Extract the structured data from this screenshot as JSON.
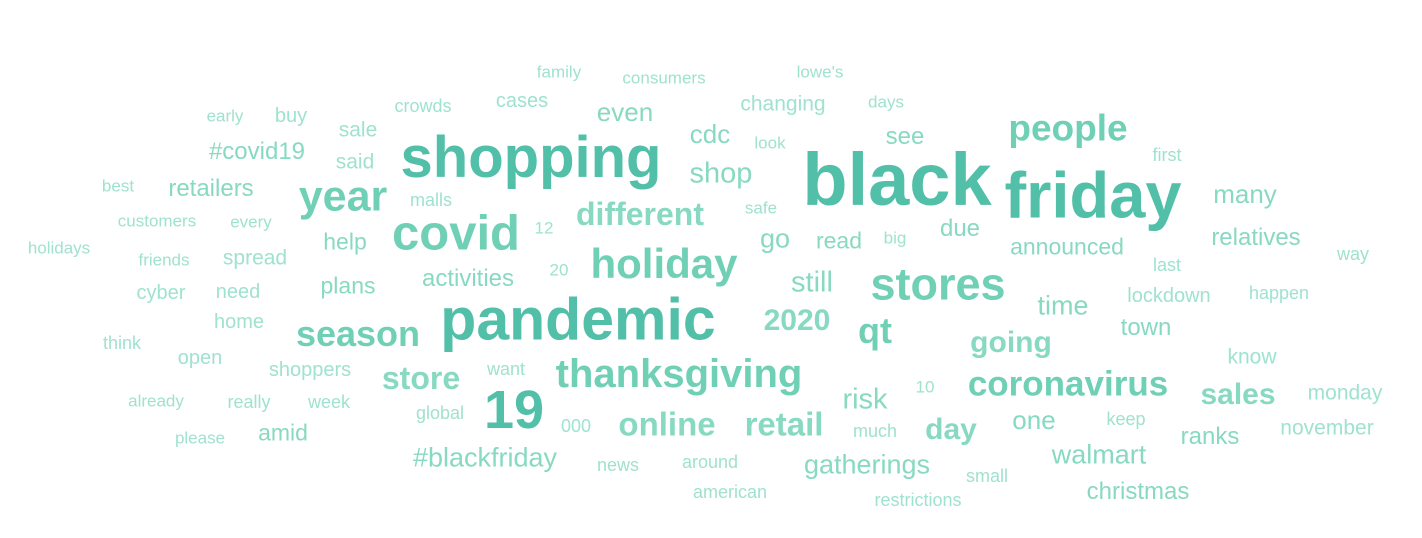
{
  "wordcloud": {
    "colors": {
      "w1": "#9fe2cf",
      "w2": "#88d9c1",
      "w3": "#6fd0b5",
      "w4": "#52bfa9"
    },
    "words": [
      {
        "text": "black",
        "weight": 100
      },
      {
        "text": "friday",
        "weight": 88
      },
      {
        "text": "pandemic",
        "weight": 80
      },
      {
        "text": "shopping",
        "weight": 78
      },
      {
        "text": "19",
        "weight": 72
      },
      {
        "text": "covid",
        "weight": 66
      },
      {
        "text": "stores",
        "weight": 60
      },
      {
        "text": "year",
        "weight": 58
      },
      {
        "text": "holiday",
        "weight": 56
      },
      {
        "text": "thanksgiving",
        "weight": 54
      },
      {
        "text": "people",
        "weight": 50
      },
      {
        "text": "season",
        "weight": 48
      },
      {
        "text": "qt",
        "weight": 48
      },
      {
        "text": "coronavirus",
        "weight": 46
      },
      {
        "text": "online",
        "weight": 44
      },
      {
        "text": "retail",
        "weight": 44
      },
      {
        "text": "store",
        "weight": 42
      },
      {
        "text": "different",
        "weight": 42
      },
      {
        "text": "2020",
        "weight": 40
      },
      {
        "text": "going",
        "weight": 40
      },
      {
        "text": "sales",
        "weight": 40
      },
      {
        "text": "day",
        "weight": 40
      },
      {
        "text": "shop",
        "weight": 38
      },
      {
        "text": "still",
        "weight": 38
      },
      {
        "text": "risk",
        "weight": 38
      },
      {
        "text": "#blackfriday",
        "weight": 36
      },
      {
        "text": "gatherings",
        "weight": 36
      },
      {
        "text": "walmart",
        "weight": 36
      },
      {
        "text": "go",
        "weight": 36
      },
      {
        "text": "time",
        "weight": 36
      },
      {
        "text": "many",
        "weight": 34
      },
      {
        "text": "cdc",
        "weight": 34
      },
      {
        "text": "even",
        "weight": 34
      },
      {
        "text": "one",
        "weight": 34
      },
      {
        "text": "see",
        "weight": 32
      },
      {
        "text": "activities",
        "weight": 32
      },
      {
        "text": "relatives",
        "weight": 32
      },
      {
        "text": "christmas",
        "weight": 32
      },
      {
        "text": "retailers",
        "weight": 32
      },
      {
        "text": "#covid19",
        "weight": 32
      },
      {
        "text": "town",
        "weight": 32
      },
      {
        "text": "ranks",
        "weight": 32
      },
      {
        "text": "due",
        "weight": 32
      },
      {
        "text": "amid",
        "weight": 30
      },
      {
        "text": "plans",
        "weight": 30
      },
      {
        "text": "announced",
        "weight": 30
      },
      {
        "text": "help",
        "weight": 30
      },
      {
        "text": "read",
        "weight": 30
      },
      {
        "text": "said",
        "weight": 28
      },
      {
        "text": "spread",
        "weight": 28
      },
      {
        "text": "know",
        "weight": 28
      },
      {
        "text": "changing",
        "weight": 28
      },
      {
        "text": "monday",
        "weight": 28
      },
      {
        "text": "november",
        "weight": 28
      },
      {
        "text": "sale",
        "weight": 28
      },
      {
        "text": "cases",
        "weight": 26
      },
      {
        "text": "buy",
        "weight": 26
      },
      {
        "text": "cyber",
        "weight": 26
      },
      {
        "text": "need",
        "weight": 26
      },
      {
        "text": "home",
        "weight": 26
      },
      {
        "text": "open",
        "weight": 26
      },
      {
        "text": "shoppers",
        "weight": 26
      },
      {
        "text": "lockdown",
        "weight": 26
      },
      {
        "text": "crowds",
        "weight": 24
      },
      {
        "text": "malls",
        "weight": 24
      },
      {
        "text": "news",
        "weight": 24
      },
      {
        "text": "around",
        "weight": 24
      },
      {
        "text": "happen",
        "weight": 24
      },
      {
        "text": "think",
        "weight": 24
      },
      {
        "text": "000",
        "weight": 24
      },
      {
        "text": "week",
        "weight": 24
      },
      {
        "text": "really",
        "weight": 24
      },
      {
        "text": "global",
        "weight": 24
      },
      {
        "text": "want",
        "weight": 24
      },
      {
        "text": "much",
        "weight": 24
      },
      {
        "text": "keep",
        "weight": 24
      },
      {
        "text": "small",
        "weight": 24
      },
      {
        "text": "american",
        "weight": 24
      },
      {
        "text": "restrictions",
        "weight": 24
      },
      {
        "text": "first",
        "weight": 24
      },
      {
        "text": "last",
        "weight": 24
      },
      {
        "text": "way",
        "weight": 24
      },
      {
        "text": "family",
        "weight": 22
      },
      {
        "text": "consumers",
        "weight": 22
      },
      {
        "text": "lowe's",
        "weight": 22
      },
      {
        "text": "early",
        "weight": 22
      },
      {
        "text": "days",
        "weight": 22
      },
      {
        "text": "look",
        "weight": 22
      },
      {
        "text": "best",
        "weight": 22
      },
      {
        "text": "customers",
        "weight": 22
      },
      {
        "text": "every",
        "weight": 22
      },
      {
        "text": "safe",
        "weight": 22
      },
      {
        "text": "12",
        "weight": 22
      },
      {
        "text": "big",
        "weight": 22
      },
      {
        "text": "holidays",
        "weight": 22
      },
      {
        "text": "friends",
        "weight": 22
      },
      {
        "text": "20",
        "weight": 22
      },
      {
        "text": "10",
        "weight": 22
      },
      {
        "text": "already",
        "weight": 22
      },
      {
        "text": "please",
        "weight": 22
      }
    ]
  }
}
